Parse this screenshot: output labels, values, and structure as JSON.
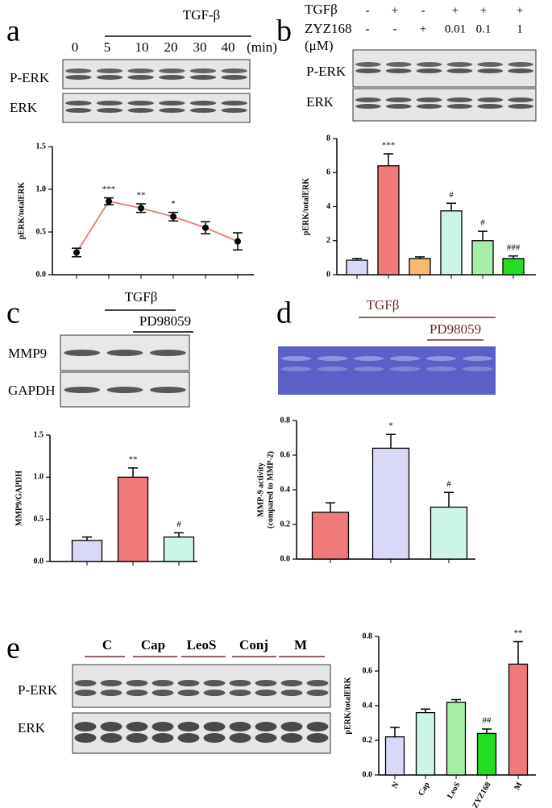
{
  "panels": {
    "a": {
      "letter": "a",
      "treatment": "TGF-β",
      "lanes": [
        "0",
        "5",
        "10",
        "20",
        "30",
        "40"
      ],
      "unit": "(min)",
      "rows": [
        "P-ERK",
        "ERK"
      ]
    },
    "b": {
      "letter": "b",
      "conditions": [
        "TGFβ",
        "ZYZ168",
        "(μM)"
      ],
      "tgf": [
        "-",
        "+",
        "-",
        "+",
        "+",
        "+"
      ],
      "zyz": [
        "-",
        "-",
        "+",
        "0.01",
        "0.1",
        "1"
      ],
      "rows": [
        "P-ERK",
        "ERK"
      ]
    },
    "c": {
      "letter": "c",
      "treatment": "TGFβ",
      "inhibitor": "PD98059",
      "rows": [
        "MMP9",
        "GAPDH"
      ]
    },
    "d": {
      "letter": "d",
      "treatment": "TGFβ",
      "inhibitor": "PD98059"
    },
    "e": {
      "letter": "e",
      "groups": [
        "C",
        "Cap",
        "LeoS",
        "Conj",
        "M"
      ],
      "rows": [
        "P-ERK",
        "ERK"
      ]
    }
  },
  "chart_data": [
    {
      "type": "line",
      "ylabel": "pERK/totalERK",
      "categories": [
        null,
        null,
        null,
        null,
        null,
        null
      ],
      "values": [
        0.26,
        0.86,
        0.78,
        0.68,
        0.55,
        0.39
      ],
      "errors": [
        0.05,
        0.04,
        0.05,
        0.05,
        0.07,
        0.1
      ],
      "annotations": [
        null,
        "***",
        "**",
        "*",
        null,
        null
      ],
      "color": "#f08080",
      "ylim": [
        0,
        1.5
      ],
      "yticks": [
        {
          "value": 0,
          "label": "0.0"
        },
        0.5,
        {
          "value": 1,
          "label": "1.0"
        },
        1.5
      ]
    },
    {
      "type": "bar",
      "ylabel": "pERK/totalERK",
      "categories": [
        null,
        null,
        null,
        null,
        null,
        null
      ],
      "values": [
        0.85,
        6.4,
        0.95,
        3.75,
        2.0,
        0.95
      ],
      "errors": [
        0.1,
        0.7,
        0.1,
        0.45,
        0.55,
        0.15
      ],
      "annotations": [
        null,
        "***",
        null,
        "#",
        "#",
        "###"
      ],
      "colors": [
        "#d9d9f7",
        "#f07a7a",
        "#f9b96e",
        "#ccf5e6",
        "#a6eea6",
        "#22dd22"
      ],
      "ylim": [
        0,
        8
      ],
      "yticks": [
        0,
        2,
        4,
        6,
        8
      ]
    },
    {
      "type": "bar",
      "ylabel": "MMP9/GAPDH",
      "categories": [
        null,
        null,
        null
      ],
      "values": [
        0.25,
        1.0,
        0.29
      ],
      "errors": [
        0.04,
        0.11,
        0.05
      ],
      "annotations": [
        null,
        "**",
        "#"
      ],
      "colors": [
        "#d9d9f7",
        "#f07a7a",
        "#ccf5e6"
      ],
      "ylim": [
        0,
        1.5
      ],
      "yticks": [
        {
          "value": 0,
          "label": "0.0"
        },
        0.5,
        {
          "value": 1,
          "label": "1.0"
        },
        1.5
      ]
    },
    {
      "type": "bar",
      "ylabel": [
        "MMP-9 activity",
        "(compared to MMP-2)"
      ],
      "categories": [
        null,
        null,
        null
      ],
      "values": [
        0.27,
        0.64,
        0.3
      ],
      "errors": [
        0.055,
        0.08,
        0.085
      ],
      "annotations": [
        null,
        "*",
        "#"
      ],
      "colors": [
        "#f07a7a",
        "#d9d9f7",
        "#ccf5e6"
      ],
      "ylim": [
        0,
        0.8
      ],
      "yticks": [
        {
          "value": 0,
          "label": "0.0"
        },
        0.2,
        0.4,
        0.6,
        0.8
      ]
    },
    {
      "type": "bar",
      "ylabel": "pERK/totalERK",
      "categories": [
        "N",
        "Cap",
        "LeoS",
        "ZYZ168",
        "M"
      ],
      "values": [
        0.22,
        0.36,
        0.42,
        0.24,
        0.64
      ],
      "errors": [
        0.055,
        0.02,
        0.015,
        0.025,
        0.13
      ],
      "annotations": [
        null,
        null,
        null,
        "##",
        "**"
      ],
      "colors": [
        "#d9d9f7",
        "#ccf5e6",
        "#a6eea6",
        "#22dd22",
        "#f07a7a"
      ],
      "ylim": [
        0,
        0.8
      ],
      "yticks": [
        {
          "value": 0,
          "label": "0.0"
        },
        0.2,
        0.4,
        0.6,
        0.8
      ]
    }
  ]
}
